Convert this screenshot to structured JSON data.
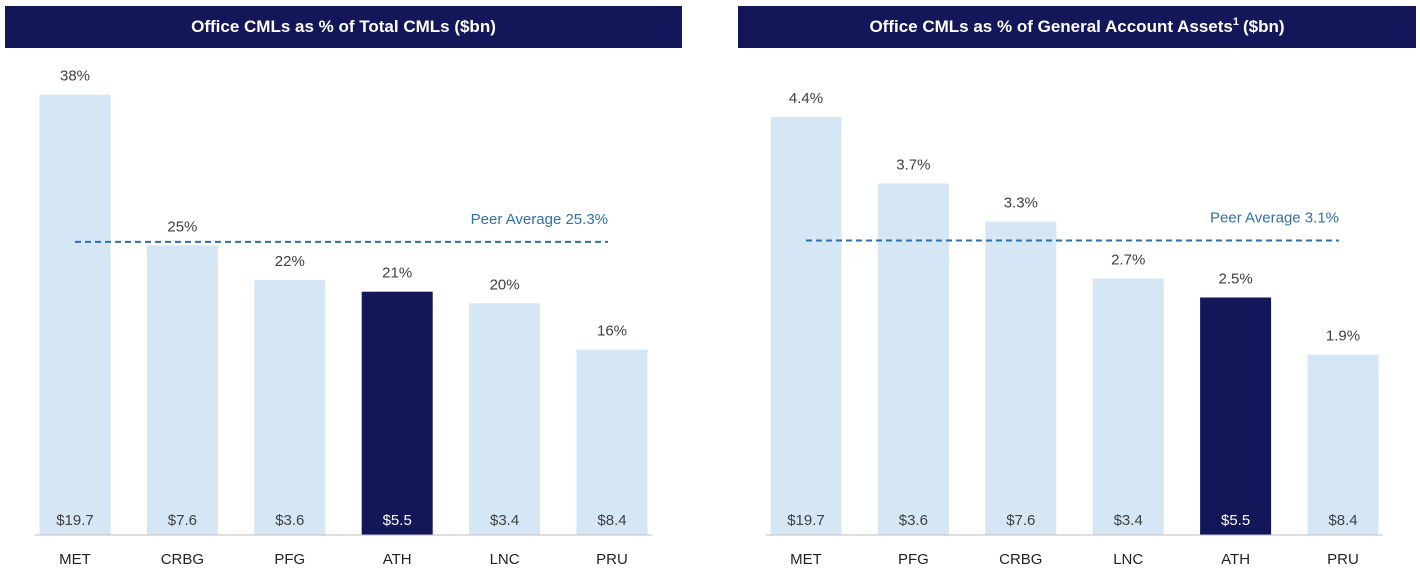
{
  "chart_data": [
    {
      "type": "bar",
      "title": "Office CMLs as % of Total CMLs ($bn)",
      "categories": [
        "MET",
        "CRBG",
        "PFG",
        "ATH",
        "LNC",
        "PRU"
      ],
      "values": [
        38,
        25,
        22,
        21,
        20,
        16
      ],
      "value_labels": [
        "38%",
        "25%",
        "22%",
        "21%",
        "20%",
        "16%"
      ],
      "amounts": [
        19.7,
        7.6,
        3.6,
        5.5,
        3.4,
        8.4
      ],
      "amount_labels": [
        "$19.7",
        "$7.6",
        "$3.6",
        "$5.5",
        "$3.4",
        "$8.4"
      ],
      "colors": [
        "#d5e6f5",
        "#d5e6f5",
        "#d5e6f5",
        "#13175a",
        "#d5e6f5",
        "#d5e6f5"
      ],
      "ylim": [
        0,
        41
      ],
      "reference": {
        "value": 25.3,
        "label": "Peer Average 25.3%",
        "color": "#2e6fb0"
      }
    },
    {
      "type": "bar",
      "title": "Office CMLs as % of General Account Assets",
      "title_note": "1",
      "title_suffix": "($bn)",
      "categories": [
        "MET",
        "PFG",
        "CRBG",
        "LNC",
        "ATH",
        "PRU"
      ],
      "values": [
        4.4,
        3.7,
        3.3,
        2.7,
        2.5,
        1.9
      ],
      "value_labels": [
        "4.4%",
        "3.7%",
        "3.3%",
        "2.7%",
        "2.5%",
        "1.9%"
      ],
      "amounts": [
        19.7,
        3.6,
        7.6,
        3.4,
        5.5,
        8.4
      ],
      "amount_labels": [
        "$19.7",
        "$3.6",
        "$7.6",
        "$3.4",
        "$5.5",
        "$8.4"
      ],
      "colors": [
        "#d5e6f5",
        "#d5e6f5",
        "#d5e6f5",
        "#d5e6f5",
        "#13175a",
        "#d5e6f5"
      ],
      "ylim": [
        0,
        5
      ],
      "reference": {
        "value": 3.1,
        "label": "Peer Average 3.1%",
        "color": "#2e6fb0"
      }
    }
  ]
}
